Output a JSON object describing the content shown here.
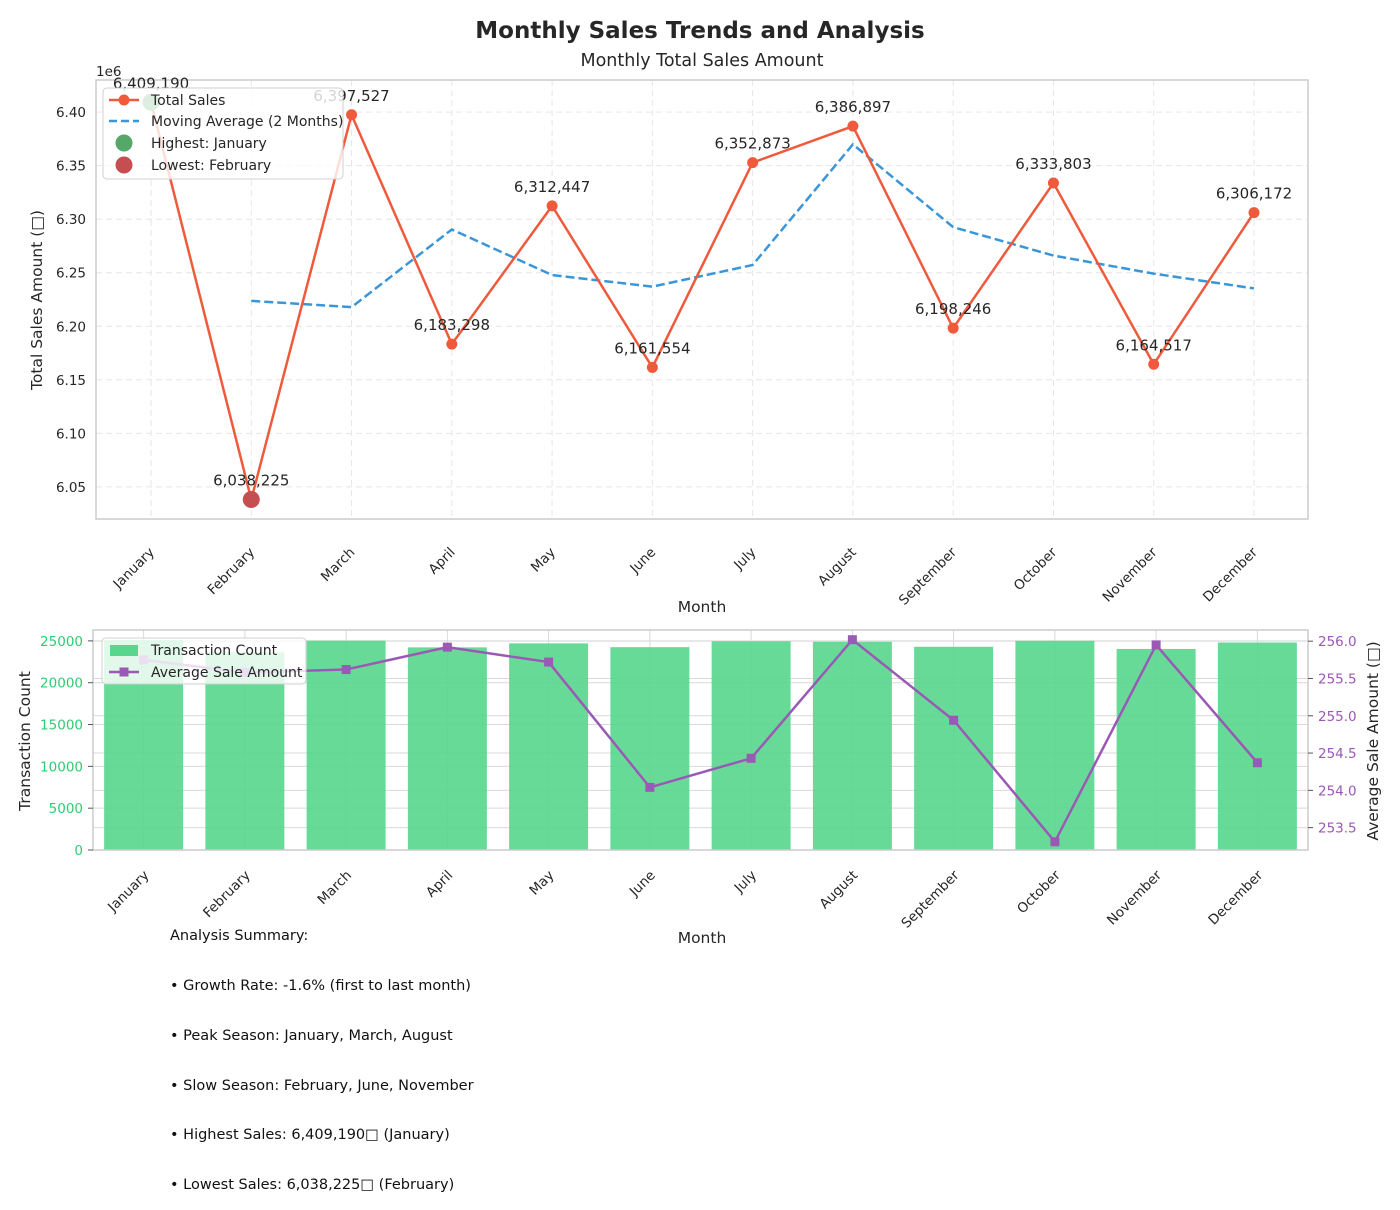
{
  "figure": {
    "title": "Monthly Sales Trends and Analysis"
  },
  "chart_data": [
    {
      "type": "line",
      "title": "Monthly Total Sales Amount",
      "xlabel": "Month",
      "ylabel": "Total Sales Amount (□)",
      "y_scale_label": "1e6",
      "categories": [
        "January",
        "February",
        "March",
        "April",
        "May",
        "June",
        "July",
        "August",
        "September",
        "October",
        "November",
        "December"
      ],
      "ylim": [
        6.02,
        6.43
      ],
      "yticks": [
        6.05,
        6.1,
        6.15,
        6.2,
        6.25,
        6.3,
        6.35,
        6.4
      ],
      "ytick_labels": [
        "6.05",
        "6.10",
        "6.15",
        "6.20",
        "6.25",
        "6.30",
        "6.35",
        "6.40"
      ],
      "grid": true,
      "legend_position": "upper left",
      "series": [
        {
          "name": "Total Sales",
          "color": "#f05a3c",
          "style": "solid",
          "marker": "circle",
          "values": [
            6409190,
            6038225,
            6397527,
            6183298,
            6312447,
            6161554,
            6352873,
            6386897,
            6198246,
            6333803,
            6164517,
            6306172
          ]
        },
        {
          "name": "Moving Average (2 Months)",
          "color": "#3a96d8",
          "style": "dashed",
          "values": [
            null,
            6223708,
            6217876,
            6290413,
            6247873,
            6237001,
            6257214,
            6369885,
            6292572,
            6266025,
            6249160,
            6235345
          ]
        }
      ],
      "data_labels": [
        "6,409,190",
        "6,038,225",
        "6,397,527",
        "6,183,298",
        "6,312,447",
        "6,161,554",
        "6,352,873",
        "6,386,897",
        "6,198,246",
        "6,333,803",
        "6,164,517",
        "6,306,172"
      ],
      "highlights": [
        {
          "name": "Highest: January",
          "color": "#55a868",
          "index": 0
        },
        {
          "name": "Lowest: February",
          "color": "#c44e52",
          "index": 1
        }
      ]
    },
    {
      "type": "bar",
      "xlabel": "Month",
      "ylabel_left": "Transaction Count",
      "ylabel_right": "Average Sale Amount (□)",
      "left_color": "#2ecc71",
      "right_color": "#9b59b6",
      "categories": [
        "January",
        "February",
        "March",
        "April",
        "May",
        "June",
        "July",
        "August",
        "September",
        "October",
        "November",
        "December"
      ],
      "ylim_left": [
        0,
        26300
      ],
      "yticks_left": [
        0,
        5000,
        10000,
        15000,
        20000,
        25000
      ],
      "ylim_right": [
        253.2,
        256.15
      ],
      "yticks_right": [
        253.5,
        254.0,
        254.5,
        255.0,
        255.5,
        256.0
      ],
      "ytick_labels_right": [
        "253.5",
        "254.0",
        "254.5",
        "255.0",
        "255.5",
        "256.0"
      ],
      "legend_position": "upper left",
      "series": [
        {
          "name": "Transaction Count",
          "color": "#58d68d",
          "axis": "left",
          "values": [
            25085,
            23632,
            25028,
            24225,
            24702,
            24250,
            24946,
            24897,
            24297,
            25013,
            24036,
            24805
          ]
        },
        {
          "name": "Average Sale Amount",
          "color": "#9b59b6",
          "axis": "right",
          "marker": "square",
          "values": [
            255.75,
            255.58,
            255.62,
            255.92,
            255.72,
            254.04,
            254.43,
            256.02,
            254.94,
            253.31,
            255.95,
            254.37
          ]
        }
      ]
    }
  ],
  "summary": {
    "lines": [
      "Analysis Summary:",
      "• Growth Rate: -1.6% (first to last month)",
      "• Peak Season: January, March, August",
      "• Slow Season: February, June, November",
      "• Highest Sales: 6,409,190□ (January)",
      "• Lowest Sales: 6,038,225□ (February)"
    ]
  }
}
